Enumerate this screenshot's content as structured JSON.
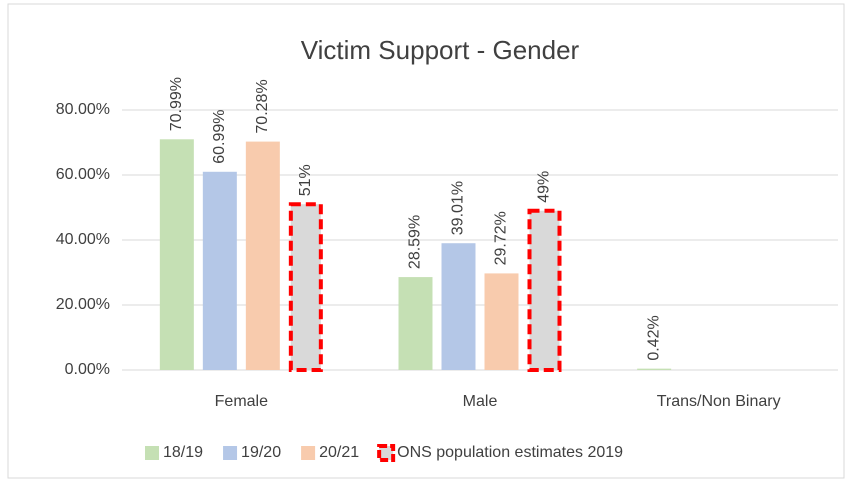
{
  "chart_data": {
    "type": "bar",
    "title": "Victim Support - Gender",
    "categories": [
      "Female",
      "Male",
      "Trans/Non Binary"
    ],
    "series": [
      {
        "name": "18/19",
        "color": "#c5e0b4",
        "values": [
          70.99,
          28.59,
          0.42
        ],
        "value_labels": [
          "70.99%",
          "28.59%",
          "0.42%"
        ]
      },
      {
        "name": "19/20",
        "color": "#b4c7e7",
        "values": [
          60.99,
          39.01,
          null
        ],
        "value_labels": [
          "60.99%",
          "39.01%",
          null
        ]
      },
      {
        "name": "20/21",
        "color": "#f8cbad",
        "values": [
          70.28,
          29.72,
          null
        ],
        "value_labels": [
          "70.28%",
          "29.72%",
          null
        ]
      },
      {
        "name": "ONS population estimates 2019",
        "color": "#d9d9d9",
        "border_color": "#ff0000",
        "values": [
          51,
          49,
          null
        ],
        "value_labels": [
          "51%",
          "49%",
          null
        ]
      }
    ],
    "ylim": [
      0,
      80
    ],
    "yticks": [
      {
        "value": 0,
        "label": "0.00%"
      },
      {
        "value": 20,
        "label": "20.00%"
      },
      {
        "value": 40,
        "label": "40.00%"
      },
      {
        "value": 60,
        "label": "60.00%"
      },
      {
        "value": 80,
        "label": "80.00%"
      }
    ],
    "grid": true,
    "legend": "bottom"
  }
}
